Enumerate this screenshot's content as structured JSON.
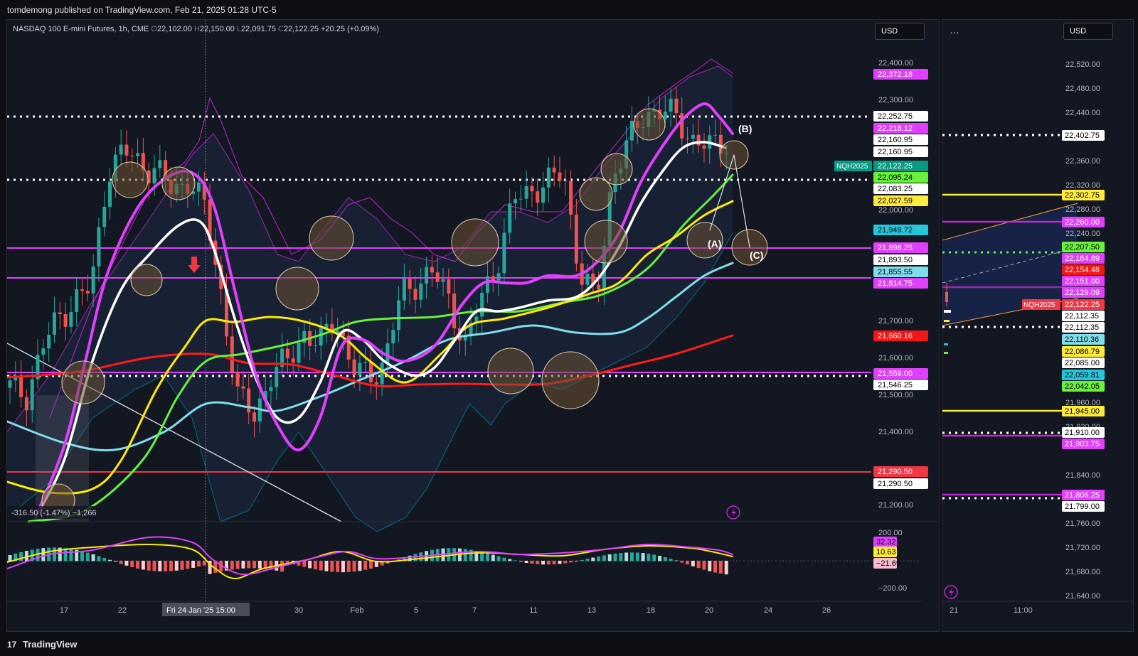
{
  "header": {
    "published": "tomdemong published on TradingView.com, Feb 21, 2025 01:28 UTC-5"
  },
  "footer": {
    "brand": "TradingView",
    "logo_glyph": "17"
  },
  "main": {
    "symbol": "NASDAQ 100 E-mini Futures, 1h, CME",
    "ohlc": {
      "o_label": "O",
      "o": "22,102.00",
      "h_label": "H",
      "h": "22,150.00",
      "l_label": "L",
      "l": "22,091.75",
      "c_label": "C",
      "c": "22,122.25",
      "change": "+20.25 (+0.09%)"
    },
    "currency": "USD",
    "measure_label": "-316.50 (-1.47%) −1,266",
    "crosshair_label": "Fri 24 Jan '25   15:00",
    "ticker_tag": "NQH2025",
    "wave_labels": [
      "(A)",
      "(B)",
      "(C)"
    ]
  },
  "side": {
    "menu": "…",
    "currency": "USD",
    "time_labels": [
      "21",
      "11:00"
    ],
    "ticker_tag": "NQH2025"
  },
  "colors": {
    "bg": "#131722",
    "white": "#ffffff",
    "magenta": "#e040fb",
    "yellow": "#ffeb3b",
    "green": "#69f03a",
    "cyan": "#80deea",
    "red": "#f21616",
    "candle_up": "#26a69a",
    "candle_down": "#ef5350",
    "circle": "#6d5232"
  },
  "chart_data": [
    {
      "type": "candlestick",
      "symbol": "NASDAQ 100 E-mini Futures",
      "interval": "1h",
      "exchange": "CME",
      "currency": "USD",
      "x_ticks": [
        "17",
        "22",
        "30",
        "Feb",
        "5",
        "7",
        "11",
        "13",
        "18",
        "20",
        "24",
        "26"
      ],
      "y_ticks": [
        "22,400.00",
        "22,300.00",
        "22,000.00",
        "21,700.00",
        "21,600.00",
        "21,500.00",
        "21,400.00",
        "21,200.00"
      ],
      "price_labels": [
        {
          "text": "22,372.18",
          "color": "#e040fb"
        },
        {
          "text": "22,252.75",
          "color": "#ffffff"
        },
        {
          "text": "22,218.12",
          "color": "#e040fb"
        },
        {
          "text": "22,160.95",
          "color": "#ffffff"
        },
        {
          "text": "22,160.95",
          "color": "#ffffff"
        },
        {
          "text": "22,122.25",
          "color": "#089981"
        },
        {
          "text": "22,095.24",
          "color": "#69f03a"
        },
        {
          "text": "22,083.25",
          "color": "#ffffff"
        },
        {
          "text": "22,027.59",
          "color": "#ffeb3b"
        },
        {
          "text": "21,949.72",
          "color": "#26c6da"
        },
        {
          "text": "21,898.25",
          "color": "#e040fb"
        },
        {
          "text": "21,893.50",
          "color": "#ffffff"
        },
        {
          "text": "21,855.55",
          "color": "#80deea"
        },
        {
          "text": "21,814.75",
          "color": "#e040fb"
        },
        {
          "text": "21,660.16",
          "color": "#f21616"
        },
        {
          "text": "21,559.00",
          "color": "#e040fb"
        },
        {
          "text": "21,546.25",
          "color": "#ffffff"
        },
        {
          "text": "21,290.50",
          "color": "#f23645"
        },
        {
          "text": "21,290.50",
          "color": "#ffffff"
        }
      ],
      "horizontal_levels": [
        {
          "price": 22252.75,
          "style": "dotted",
          "color": "#ffffff"
        },
        {
          "price": 22083.25,
          "style": "dotted",
          "color": "#ffffff"
        },
        {
          "price": 21898.25,
          "style": "solid",
          "color": "#e040fb"
        },
        {
          "price": 21814.75,
          "style": "solid",
          "color": "#e040fb"
        },
        {
          "price": 21559.0,
          "style": "solid",
          "color": "#e040fb"
        },
        {
          "price": 21546.25,
          "style": "dotted",
          "color": "#ffffff"
        },
        {
          "price": 21290.5,
          "style": "solid",
          "color": "#f23645"
        }
      ],
      "indicator_pane": {
        "y_ticks": [
          "200.00",
          "−200.00"
        ],
        "labels": [
          {
            "text": "32.32",
            "color": "#e040fb"
          },
          {
            "text": "10.63",
            "color": "#ffeb3b"
          },
          {
            "text": "−21.69",
            "color": "#f8bbd0"
          }
        ]
      },
      "series": [
        {
          "name": "close",
          "values": [
            21450,
            21430,
            21560,
            21640,
            21690,
            21720,
            22040,
            22090,
            22060,
            22040,
            21980,
            22020,
            21930,
            21700,
            21420,
            21380,
            21480,
            21520,
            21600,
            21560,
            21650,
            21500,
            21480,
            21520,
            21700,
            21740,
            21760,
            21690,
            21560,
            21700,
            21800,
            21960,
            21990,
            22000,
            22040,
            21760,
            21680,
            22030,
            22110,
            22200,
            22200,
            22180,
            22120,
            22100,
            22122
          ]
        }
      ]
    },
    {
      "type": "candlestick",
      "x_ticks": [
        "21",
        "11:00"
      ],
      "y_ticks": [
        "22,520.00",
        "22,480.00",
        "22,440.00",
        "22,360.00",
        "22,320.00",
        "22,280.00",
        "22,240.00",
        "21,960.00",
        "21,920.00",
        "21,840.00",
        "21,760.00",
        "21,720.00",
        "21,680.00",
        "21,640.00"
      ],
      "price_labels": [
        {
          "text": "22,402.75",
          "color": "#ffffff"
        },
        {
          "text": "22,302.75",
          "color": "#ffeb3b"
        },
        {
          "text": "22,260.00",
          "color": "#e040fb"
        },
        {
          "text": "22,207.50",
          "color": "#69f03a"
        },
        {
          "text": "22,164.89",
          "color": "#e040fb"
        },
        {
          "text": "22,154.48",
          "color": "#f21616"
        },
        {
          "text": "22,151.00",
          "color": "#e040fb"
        },
        {
          "text": "22,129.09",
          "color": "#e040fb"
        },
        {
          "text": "22,122.25",
          "color": "#f23645"
        },
        {
          "text": "22,112.35",
          "color": "#ffffff"
        },
        {
          "text": "22,112.35",
          "color": "#ffffff"
        },
        {
          "text": "22,110.36",
          "color": "#80deea"
        },
        {
          "text": "22,086.79",
          "color": "#ffeb3b"
        },
        {
          "text": "22,085.00",
          "color": "#ffffff"
        },
        {
          "text": "22,059.81",
          "color": "#26c6da"
        },
        {
          "text": "22,042.05",
          "color": "#69f03a"
        },
        {
          "text": "21,945.00",
          "color": "#ffeb3b"
        },
        {
          "text": "21,910.00",
          "color": "#ffffff"
        },
        {
          "text": "21,903.75",
          "color": "#e040fb"
        },
        {
          "text": "21,806.25",
          "color": "#e040fb"
        },
        {
          "text": "21,799.00",
          "color": "#ffffff"
        }
      ]
    }
  ]
}
